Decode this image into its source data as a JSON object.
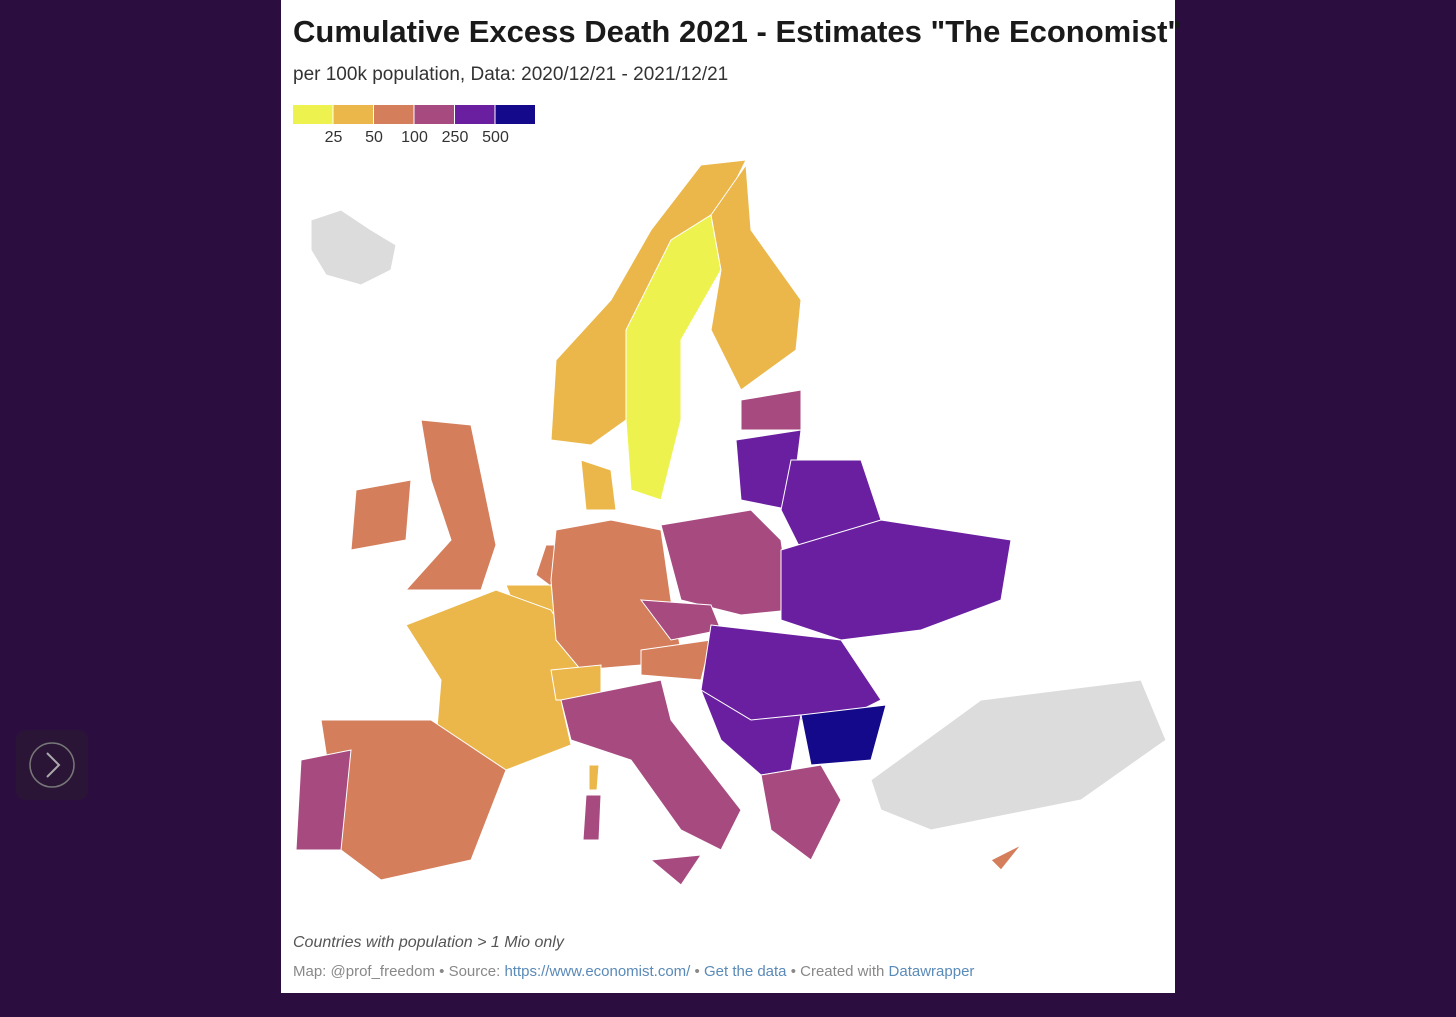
{
  "title": "Cumulative Excess Death 2021 - Estimates \"The Economist\"",
  "subtitle": "per 100k population, Data: 2020/12/21 - 2021/12/21",
  "legend": {
    "colors": [
      "#eef24f",
      "#ebb74a",
      "#d47e5c",
      "#a74a80",
      "#6a1fa1",
      "#14098a"
    ],
    "ticks": [
      25,
      50,
      100,
      250,
      500
    ]
  },
  "footer": {
    "note": "Countries with population > 1 Mio only",
    "credit": "Map: @prof_freedom",
    "separator": "•",
    "source_label": "Source:",
    "source_link": "https://www.economist.com/",
    "get_data": "Get the data",
    "created_label": "Created with",
    "tool": "Datawrapper"
  }
}
